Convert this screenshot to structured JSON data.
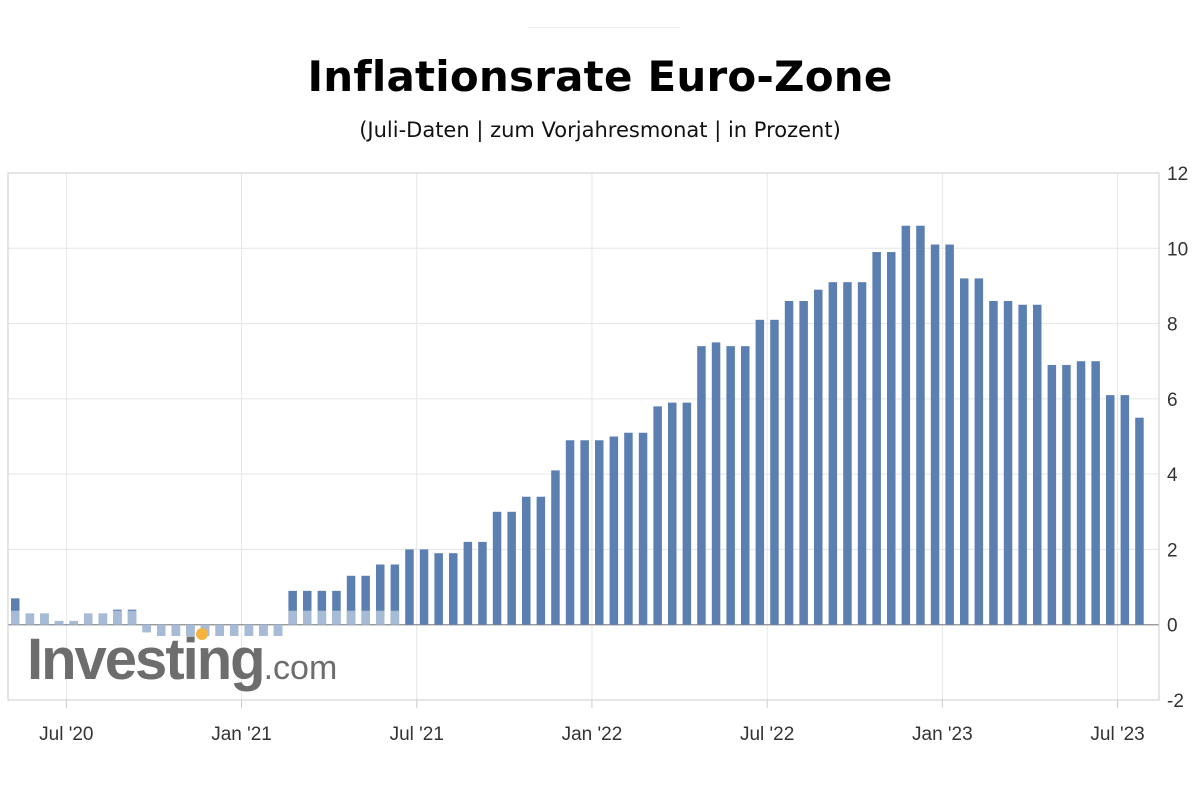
{
  "chart_data": {
    "type": "bar",
    "title": "Inflationsrate Euro-Zone",
    "subtitle": "(Juli-Daten | zum Vorjahresmonat | in Prozent)",
    "ylim": [
      -2,
      12
    ],
    "y_ticks": [
      -2,
      0,
      2,
      4,
      6,
      8,
      10,
      12
    ],
    "x_ticks": [
      {
        "label": "Jul '20",
        "after_bar": 3
      },
      {
        "label": "Jan '21",
        "after_bar": 15
      },
      {
        "label": "Jul '21",
        "after_bar": 27
      },
      {
        "label": "Jan '22",
        "after_bar": 39
      },
      {
        "label": "Jul '22",
        "after_bar": 51
      },
      {
        "label": "Jan '23",
        "after_bar": 63
      },
      {
        "label": "Jul '23",
        "after_bar": 75
      }
    ],
    "grid": true,
    "bar_color": "#5b7fb0",
    "bar_color_light": "#b5c6dd",
    "values": [
      0.7,
      0.3,
      0.3,
      0.1,
      0.1,
      0.3,
      0.3,
      0.4,
      0.4,
      -0.2,
      -0.3,
      -0.3,
      -0.3,
      -0.3,
      -0.3,
      -0.3,
      -0.3,
      -0.3,
      -0.3,
      0.9,
      0.9,
      0.9,
      0.9,
      1.3,
      1.3,
      1.6,
      1.6,
      2.0,
      2.0,
      1.9,
      1.9,
      2.2,
      2.2,
      3.0,
      3.0,
      3.4,
      3.4,
      4.1,
      4.9,
      4.9,
      4.9,
      5.0,
      5.1,
      5.1,
      5.8,
      5.9,
      5.9,
      7.4,
      7.5,
      7.4,
      7.4,
      8.1,
      8.1,
      8.6,
      8.6,
      8.9,
      9.1,
      9.1,
      9.1,
      9.9,
      9.9,
      10.6,
      10.6,
      10.1,
      10.1,
      9.2,
      9.2,
      8.6,
      8.6,
      8.5,
      8.5,
      6.9,
      6.9,
      7.0,
      7.0,
      6.1,
      6.1,
      5.5
    ]
  },
  "watermark": {
    "main": "Investing",
    "domain": ".com"
  }
}
